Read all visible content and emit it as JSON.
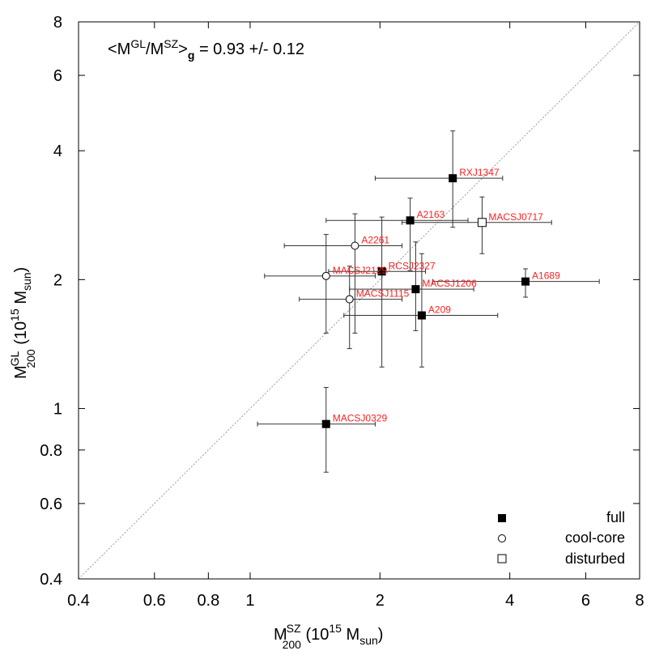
{
  "chart_data": {
    "type": "scatter",
    "xscale": "log",
    "yscale": "log",
    "xlim": [
      0.4,
      8
    ],
    "ylim": [
      0.4,
      8
    ],
    "xticks": [
      0.4,
      0.6,
      0.8,
      1,
      2,
      4,
      6,
      8
    ],
    "xtick_labels": [
      "0.4",
      "0.6",
      "0.8",
      "1",
      "2",
      "4",
      "6",
      "8"
    ],
    "yticks": [
      0.4,
      0.6,
      0.8,
      1,
      2,
      4,
      6,
      8
    ],
    "ytick_labels": [
      "0.4",
      "0.6",
      "0.8",
      "1",
      "2",
      "4",
      "6",
      "8"
    ],
    "xlabel": {
      "main": "M",
      "sup": "SZ",
      "sub": "200",
      "units_open": " (10",
      "units_exp": "15",
      "units_m": " M",
      "units_sub": "sun",
      "units_close": ")"
    },
    "ylabel": {
      "main": "M",
      "sup": "GL",
      "sub": "200",
      "units_open": " (10",
      "units_exp": "15",
      "units_m": " M",
      "units_sub": "sun",
      "units_close": ")"
    },
    "annotation": {
      "open": "<M",
      "sup1": "GL",
      "slash": "/M",
      "sup2": "SZ",
      "close": ">",
      "sub": "g",
      "value": " = 0.93 +/- 0.12"
    },
    "reference_line": "one-to-one",
    "legend": {
      "position": "bottom-right",
      "entries": [
        {
          "label": "full",
          "marker": "filled-square"
        },
        {
          "label": "cool-core",
          "marker": "open-circle"
        },
        {
          "label": "disturbed",
          "marker": "open-square"
        }
      ]
    },
    "points": [
      {
        "name": "RXJ1347",
        "type": "full",
        "x": 2.95,
        "x_lo": 1.95,
        "x_hi": 3.85,
        "y": 3.45,
        "y_lo": 2.65,
        "y_hi": 4.45
      },
      {
        "name": "A2163",
        "type": "full",
        "x": 2.35,
        "x_lo": 1.5,
        "x_hi": 3.2,
        "y": 2.75,
        "y_lo": 2.1,
        "y_hi": 3.1
      },
      {
        "name": "MACSJ0717",
        "type": "disturbed",
        "x": 3.45,
        "x_lo": 2.25,
        "x_hi": 5.0,
        "y": 2.72,
        "y_lo": 2.3,
        "y_hi": 3.12
      },
      {
        "name": "A2261",
        "type": "cool-core",
        "x": 1.75,
        "x_lo": 1.2,
        "x_hi": 2.25,
        "y": 2.4,
        "y_lo": 1.5,
        "y_hi": 2.85
      },
      {
        "name": "RCSJ2327",
        "type": "full",
        "x": 2.02,
        "x_lo": 1.52,
        "x_hi": 2.55,
        "y": 2.09,
        "y_lo": 1.25,
        "y_hi": 2.8
      },
      {
        "name": "MACSJ2129",
        "type": "cool-core",
        "x": 1.5,
        "x_lo": 1.08,
        "x_hi": 1.95,
        "y": 2.04,
        "y_lo": 1.5,
        "y_hi": 2.55
      },
      {
        "name": "MACSJ1206",
        "type": "full",
        "x": 2.42,
        "x_lo": 1.7,
        "x_hi": 3.3,
        "y": 1.9,
        "y_lo": 1.52,
        "y_hi": 2.45
      },
      {
        "name": "A1689",
        "type": "full",
        "x": 4.35,
        "x_lo": 2.65,
        "x_hi": 6.45,
        "y": 1.98,
        "y_lo": 1.82,
        "y_hi": 2.12
      },
      {
        "name": "MACSJ1115",
        "type": "cool-core",
        "x": 1.7,
        "x_lo": 1.3,
        "x_hi": 2.25,
        "y": 1.8,
        "y_lo": 1.38,
        "y_hi": 2.15
      },
      {
        "name": "A209",
        "type": "full",
        "x": 2.5,
        "x_lo": 1.65,
        "x_hi": 3.75,
        "y": 1.65,
        "y_lo": 1.25,
        "y_hi": 2.3
      },
      {
        "name": "MACSJ0329",
        "type": "full",
        "x": 1.5,
        "x_lo": 1.04,
        "x_hi": 1.95,
        "y": 0.92,
        "y_lo": 0.71,
        "y_hi": 1.12
      }
    ]
  }
}
